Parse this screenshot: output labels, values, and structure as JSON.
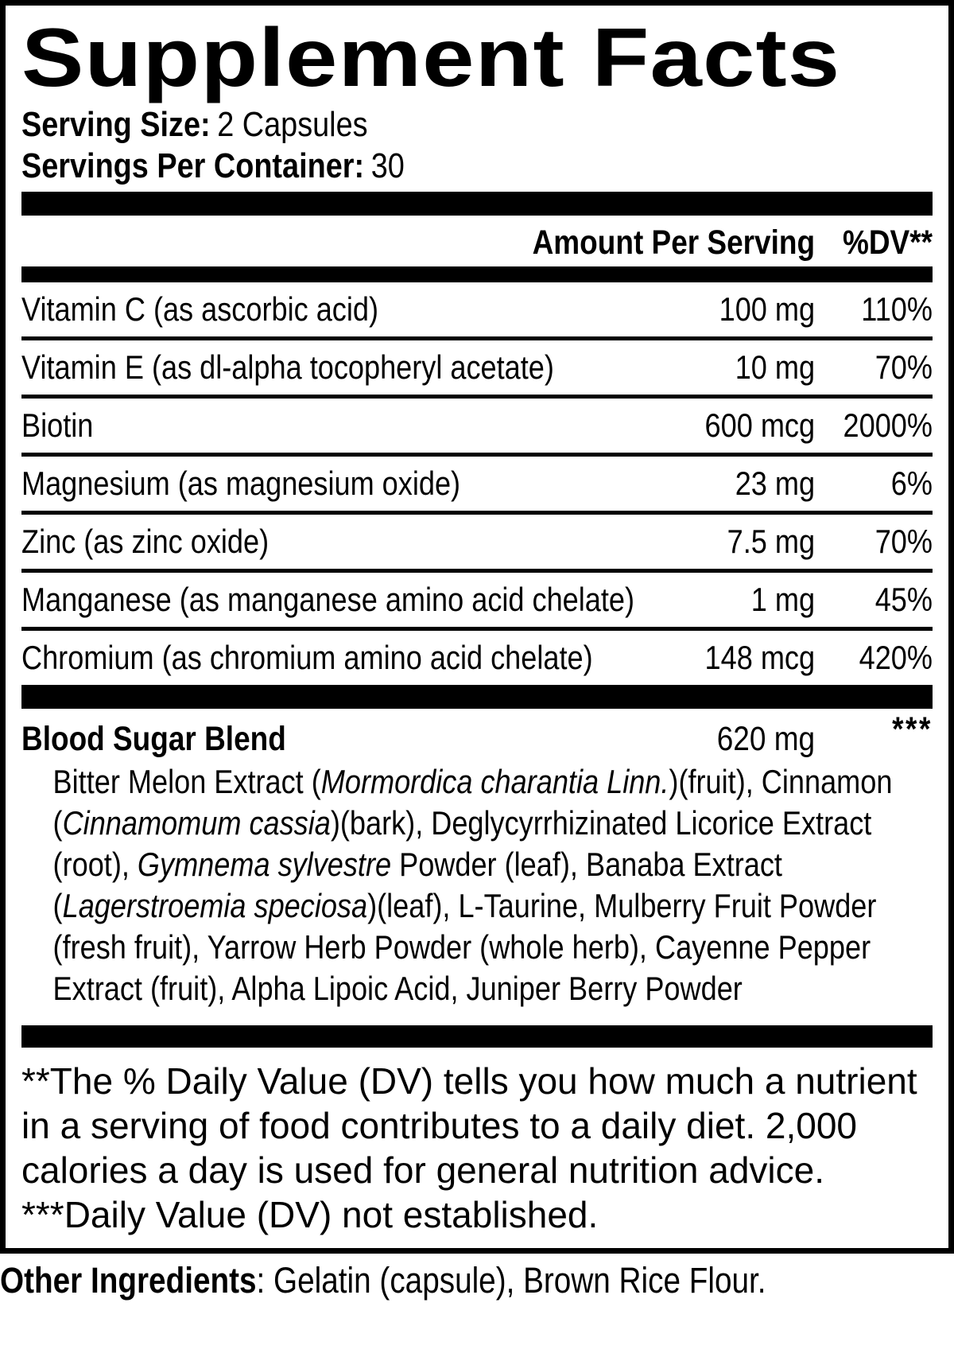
{
  "title": "Supplement Facts",
  "serving": {
    "size_label": "Serving Size:",
    "size_value": "2 Capsules",
    "container_label": "Servings Per Container:",
    "container_value": "30"
  },
  "table": {
    "header": {
      "amount": "Amount Per Serving",
      "dv": "%DV**"
    },
    "rows": [
      {
        "name": "Vitamin C (as ascorbic acid)",
        "amount": "100 mg",
        "dv": "110%"
      },
      {
        "name": "Vitamin E (as dl-alpha tocopheryl acetate)",
        "amount": "10 mg",
        "dv": "70%"
      },
      {
        "name": "Biotin",
        "amount": "600 mcg",
        "dv": "2000%"
      },
      {
        "name": "Magnesium (as magnesium oxide)",
        "amount": "23 mg",
        "dv": "6%"
      },
      {
        "name": "Zinc (as zinc oxide)",
        "amount": "7.5 mg",
        "dv": "70%"
      },
      {
        "name": "Manganese (as manganese amino acid chelate)",
        "amount": "1 mg",
        "dv": "45%"
      },
      {
        "name": "Chromium (as chromium amino acid chelate)",
        "amount": "148 mcg",
        "dv": "420%"
      }
    ]
  },
  "blend": {
    "name": "Blood Sugar Blend",
    "amount": "620 mg",
    "dv": "***",
    "ingredients_segments": [
      {
        "text": "Bitter Melon Extract (",
        "italic": false
      },
      {
        "text": "Mormordica charantia Linn.",
        "italic": true
      },
      {
        "text": ")(fruit), Cinnamon (",
        "italic": false
      },
      {
        "text": "Cinnamomum cassia",
        "italic": true
      },
      {
        "text": ")(bark), Deglycyrrhizinated Licorice Extract (root), ",
        "italic": false
      },
      {
        "text": "Gymnema sylvestre",
        "italic": true
      },
      {
        "text": " Powder (leaf), Banaba Extract (",
        "italic": false
      },
      {
        "text": "Lagerstroemia speciosa",
        "italic": true
      },
      {
        "text": ")(leaf), L-Taurine, Mulberry Fruit Powder (fresh fruit), Yarrow Herb Powder (whole herb), Cayenne Pepper Extract (fruit), Alpha Lipoic Acid, Juniper Berry Powder",
        "italic": false
      }
    ]
  },
  "footnotes": {
    "dv_note": "**The % Daily Value (DV) tells you how much a nutrient in a serving of food contributes to a daily diet. 2,000 calories a day is used for general nutrition advice.",
    "not_established": "***Daily Value (DV) not established."
  },
  "other_ingredients": {
    "label": "Other Ingredients",
    "value": ": Gelatin (capsule), Brown Rice Flour."
  },
  "colors": {
    "ink": "#000000",
    "background": "#ffffff"
  }
}
